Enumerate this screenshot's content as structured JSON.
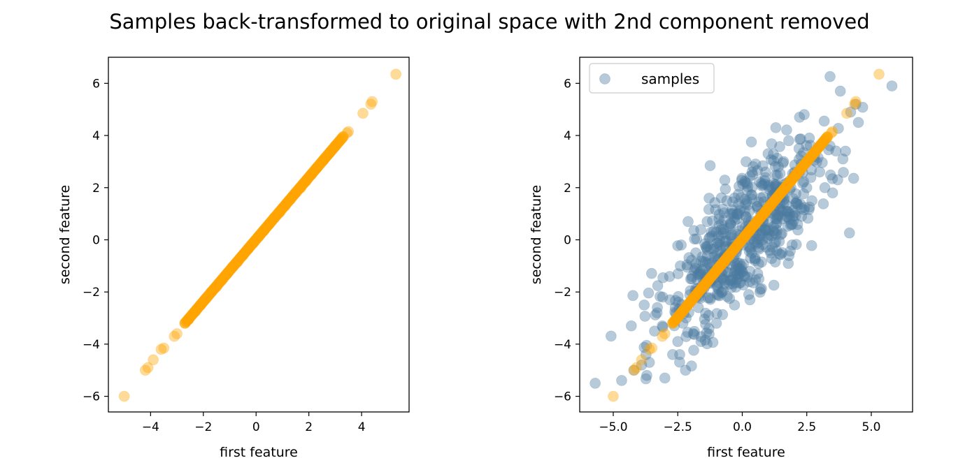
{
  "suptitle": "Samples back-transformed to original space with 2nd component removed",
  "colors": {
    "samples": "#4a7aa0",
    "reconstructed": "#ffa500",
    "axes": "#000000"
  },
  "chart_data": [
    {
      "type": "scatter",
      "xlabel": "first feature",
      "ylabel": "second feature",
      "xlim": [
        -5.6,
        5.8
      ],
      "ylim": [
        -6.6,
        7.0
      ],
      "xticks": [
        -4,
        -2,
        0,
        2,
        4
      ],
      "xtick_labels": [
        "−4",
        "−2",
        "0",
        "2",
        "4"
      ],
      "yticks": [
        -6,
        -4,
        -2,
        0,
        2,
        4,
        6
      ],
      "ytick_labels": [
        "−6",
        "−4",
        "−2",
        "0",
        "2",
        "4",
        "6"
      ],
      "legend": null,
      "series": [
        {
          "role": "reconstructed",
          "color": "#ffa500",
          "alpha": 0.4,
          "points": [
            [
              -5.0,
              -6.0
            ],
            [
              -4.2,
              -5.0
            ],
            [
              -4.1,
              -4.9
            ],
            [
              -3.9,
              -4.6
            ],
            [
              -3.6,
              -4.2
            ],
            [
              -3.5,
              -4.15
            ],
            [
              -3.1,
              -3.7
            ],
            [
              -3.0,
              -3.6
            ],
            [
              -2.7,
              -3.2
            ],
            [
              -2.55,
              -3.05
            ],
            [
              -2.3,
              -2.75
            ],
            [
              -2.1,
              -2.5
            ],
            [
              -1.9,
              -2.25
            ],
            [
              -1.7,
              -2.0
            ],
            [
              -1.5,
              -1.8
            ],
            [
              -1.3,
              -1.55
            ],
            [
              -1.1,
              -1.3
            ],
            [
              -0.9,
              -1.05
            ],
            [
              -0.7,
              -0.85
            ],
            [
              -0.5,
              -0.6
            ],
            [
              -0.3,
              -0.35
            ],
            [
              -0.1,
              -0.12
            ],
            [
              0.1,
              0.12
            ],
            [
              0.3,
              0.35
            ],
            [
              0.5,
              0.6
            ],
            [
              0.7,
              0.85
            ],
            [
              0.9,
              1.05
            ],
            [
              1.1,
              1.3
            ],
            [
              1.3,
              1.55
            ],
            [
              1.5,
              1.8
            ],
            [
              1.7,
              2.0
            ],
            [
              1.9,
              2.25
            ],
            [
              2.1,
              2.5
            ],
            [
              2.3,
              2.75
            ],
            [
              2.55,
              3.05
            ],
            [
              2.8,
              3.35
            ],
            [
              3.0,
              3.6
            ],
            [
              3.3,
              3.95
            ],
            [
              3.45,
              4.1
            ],
            [
              3.5,
              4.15
            ],
            [
              4.05,
              4.85
            ],
            [
              4.35,
              5.2
            ],
            [
              4.4,
              5.3
            ],
            [
              5.3,
              6.35
            ]
          ],
          "dense_segment": {
            "from": [
              -2.7,
              -3.2
            ],
            "to": [
              3.3,
              3.95
            ]
          }
        }
      ]
    },
    {
      "type": "scatter",
      "xlabel": "first feature",
      "ylabel": "second feature",
      "xlim": [
        -6.3,
        6.6
      ],
      "ylim": [
        -6.6,
        7.0
      ],
      "xticks": [
        -5.0,
        -2.5,
        0.0,
        2.5,
        5.0
      ],
      "xtick_labels": [
        "−5.0",
        "−2.5",
        "0.0",
        "2.5",
        "5.0"
      ],
      "yticks": [
        -6,
        -4,
        -2,
        0,
        2,
        4,
        6
      ],
      "ytick_labels": [
        "−6",
        "−4",
        "−2",
        "0",
        "2",
        "4",
        "6"
      ],
      "legend": {
        "position": "top-left",
        "entries": [
          {
            "label": "samples",
            "color": "#4a7aa0"
          }
        ]
      },
      "series": [
        {
          "role": "samples",
          "name": "samples",
          "color": "#4a7aa0",
          "alpha": 0.4,
          "points": [
            [
              -5.7,
              -5.5
            ],
            [
              -4.3,
              -3.3
            ],
            [
              -4.2,
              -5.0
            ],
            [
              -3.9,
              -4.8
            ],
            [
              -3.7,
              -5.2
            ],
            [
              -3.6,
              -4.7
            ],
            [
              -3.4,
              -3.5
            ],
            [
              -3.3,
              -2.8
            ],
            [
              -3.1,
              -3.3
            ],
            [
              -3.0,
              -5.3
            ],
            [
              -2.8,
              -2.3
            ],
            [
              -2.7,
              -4.4
            ],
            [
              -2.6,
              -2.6
            ],
            [
              -2.5,
              -3.9
            ],
            [
              -2.4,
              -1.0
            ],
            [
              -2.3,
              -3.2
            ],
            [
              -2.2,
              -5.0
            ],
            [
              -2.0,
              -1.5
            ],
            [
              -1.9,
              -3.6
            ],
            [
              -1.8,
              -0.5
            ],
            [
              -1.7,
              -2.6
            ],
            [
              -1.5,
              -1.9
            ],
            [
              -1.4,
              -0.3
            ],
            [
              -1.3,
              -2.9
            ],
            [
              -1.2,
              0.3
            ],
            [
              -1.1,
              -1.3
            ],
            [
              -1.0,
              -3.2
            ],
            [
              -0.9,
              0.8
            ],
            [
              -0.8,
              -2.0
            ],
            [
              -0.7,
              -0.6
            ],
            [
              -0.6,
              1.5
            ],
            [
              -0.5,
              -1.7
            ],
            [
              -0.4,
              0.2
            ],
            [
              -0.3,
              -2.5
            ],
            [
              -0.2,
              1.0
            ],
            [
              -0.1,
              -0.9
            ],
            [
              0.0,
              0.5
            ],
            [
              0.1,
              -1.4
            ],
            [
              0.2,
              1.9
            ],
            [
              0.3,
              -0.3
            ],
            [
              0.4,
              2.5
            ],
            [
              0.5,
              -0.8
            ],
            [
              0.6,
              1.2
            ],
            [
              0.7,
              -1.9
            ],
            [
              0.8,
              2.1
            ],
            [
              0.9,
              0.4
            ],
            [
              1.0,
              3.3
            ],
            [
              1.1,
              -0.5
            ],
            [
              1.2,
              1.7
            ],
            [
              1.3,
              0.8
            ],
            [
              1.4,
              2.8
            ],
            [
              1.5,
              0.2
            ],
            [
              1.6,
              3.0
            ],
            [
              1.7,
              1.1
            ],
            [
              1.8,
              3.8
            ],
            [
              1.9,
              0.6
            ],
            [
              2.0,
              2.4
            ],
            [
              2.1,
              1.4
            ],
            [
              2.2,
              3.5
            ],
            [
              2.3,
              0.9
            ],
            [
              2.4,
              4.8
            ],
            [
              2.5,
              2.0
            ],
            [
              2.7,
              1.5
            ],
            [
              2.8,
              3.2
            ],
            [
              3.0,
              2.6
            ],
            [
              3.2,
              2.0
            ],
            [
              3.4,
              3.6
            ],
            [
              3.5,
              1.8
            ],
            [
              3.7,
              2.3
            ],
            [
              3.9,
              3.1
            ],
            [
              4.0,
              3.4
            ],
            [
              4.2,
              4.9
            ],
            [
              4.4,
              5.2
            ],
            [
              4.5,
              4.5
            ],
            [
              3.8,
              5.7
            ],
            [
              5.8,
              5.9
            ],
            [
              -2.1,
              0.7
            ],
            [
              1.3,
              4.3
            ],
            [
              -1.6,
              -3.9
            ],
            [
              0.6,
              -1.3
            ],
            [
              -0.3,
              1.6
            ],
            [
              2.6,
              3.9
            ],
            [
              -3.8,
              -2.5
            ],
            [
              0.9,
              2.6
            ]
          ],
          "cloud": {
            "center": [
              0.0,
              0.0
            ],
            "sd_major": 2.3,
            "sd_minor": 0.85,
            "angle_deg": 50,
            "count": 520
          }
        },
        {
          "role": "reconstructed",
          "color": "#ffa500",
          "alpha": 0.4,
          "points": [
            [
              -5.0,
              -6.0
            ],
            [
              -4.2,
              -5.0
            ],
            [
              -4.1,
              -4.9
            ],
            [
              -3.9,
              -4.6
            ],
            [
              -3.6,
              -4.2
            ],
            [
              -3.5,
              -4.15
            ],
            [
              -3.1,
              -3.7
            ],
            [
              -3.0,
              -3.6
            ],
            [
              -2.7,
              -3.2
            ],
            [
              -2.55,
              -3.05
            ],
            [
              -2.3,
              -2.75
            ],
            [
              -2.1,
              -2.5
            ],
            [
              -1.9,
              -2.25
            ],
            [
              -1.7,
              -2.0
            ],
            [
              -1.5,
              -1.8
            ],
            [
              -1.3,
              -1.55
            ],
            [
              -1.1,
              -1.3
            ],
            [
              -0.9,
              -1.05
            ],
            [
              -0.7,
              -0.85
            ],
            [
              -0.5,
              -0.6
            ],
            [
              -0.3,
              -0.35
            ],
            [
              -0.1,
              -0.12
            ],
            [
              0.1,
              0.12
            ],
            [
              0.3,
              0.35
            ],
            [
              0.5,
              0.6
            ],
            [
              0.7,
              0.85
            ],
            [
              0.9,
              1.05
            ],
            [
              1.1,
              1.3
            ],
            [
              1.3,
              1.55
            ],
            [
              1.5,
              1.8
            ],
            [
              1.7,
              2.0
            ],
            [
              1.9,
              2.25
            ],
            [
              2.1,
              2.5
            ],
            [
              2.3,
              2.75
            ],
            [
              2.55,
              3.05
            ],
            [
              2.8,
              3.35
            ],
            [
              3.0,
              3.6
            ],
            [
              3.3,
              3.95
            ],
            [
              3.45,
              4.1
            ],
            [
              3.5,
              4.15
            ],
            [
              4.05,
              4.85
            ],
            [
              4.35,
              5.2
            ],
            [
              4.4,
              5.3
            ],
            [
              5.3,
              6.35
            ]
          ],
          "dense_segment": {
            "from": [
              -2.7,
              -3.2
            ],
            "to": [
              3.3,
              3.95
            ]
          }
        }
      ]
    }
  ]
}
